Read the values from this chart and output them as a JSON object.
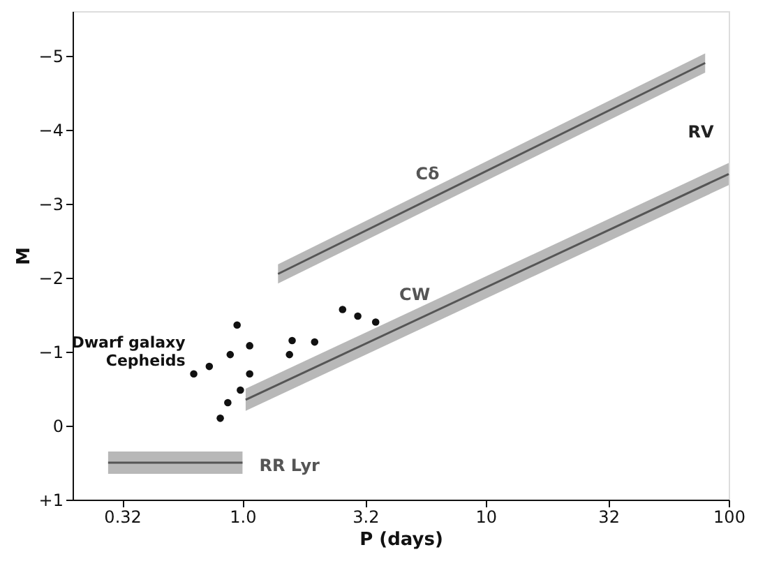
{
  "chart_data": {
    "type": "line",
    "xlabel": "P (days)",
    "ylabel": "M",
    "log": "x",
    "xlim": [
      0.2,
      100
    ],
    "xticks": [
      0.32,
      {
        "value": 1,
        "label": "1.0"
      },
      3.2,
      10,
      32,
      100
    ],
    "ylim": [
      1,
      -5.6
    ],
    "yticks": [
      {
        "value": 1,
        "label": "+1"
      },
      0,
      -1,
      -2,
      -3,
      -4,
      -5
    ],
    "grid": false,
    "series": [
      {
        "name": "Cδ",
        "color": "#555555",
        "x": [
          1.4,
          80
        ],
        "values": [
          -2.05,
          -4.9
        ],
        "lower": [
          -1.92,
          -4.77
        ],
        "upper": [
          -2.18,
          -5.03
        ]
      },
      {
        "name": "CW",
        "color": "#555555",
        "x": [
          1.03,
          100
        ],
        "values": [
          -0.35,
          -3.4
        ],
        "lower": [
          -0.2,
          -3.25
        ],
        "upper": [
          -0.5,
          -3.55
        ]
      },
      {
        "name": "RR Lyr",
        "color": "#555555",
        "x": [
          0.28,
          1.0
        ],
        "values": [
          0.5,
          0.5
        ],
        "lower": [
          0.65,
          0.65
        ],
        "upper": [
          0.35,
          0.35
        ]
      },
      {
        "name": "Dwarf galaxy\nCepheids",
        "type": "scatter",
        "color": "#111111",
        "marker": "circle",
        "x": [
          0.63,
          0.73,
          0.95,
          1.07,
          0.89,
          1.07,
          0.98,
          0.87,
          0.81,
          1.6,
          1.56,
          1.98,
          2.58,
          2.98,
          3.53
        ],
        "values": [
          -0.7,
          -0.8,
          -1.36,
          -1.08,
          -0.96,
          -0.7,
          -0.48,
          -0.31,
          -0.1,
          -1.15,
          -0.96,
          -1.13,
          -1.57,
          -1.48,
          -1.4
        ]
      }
    ],
    "annotations": [
      "RV"
    ]
  }
}
